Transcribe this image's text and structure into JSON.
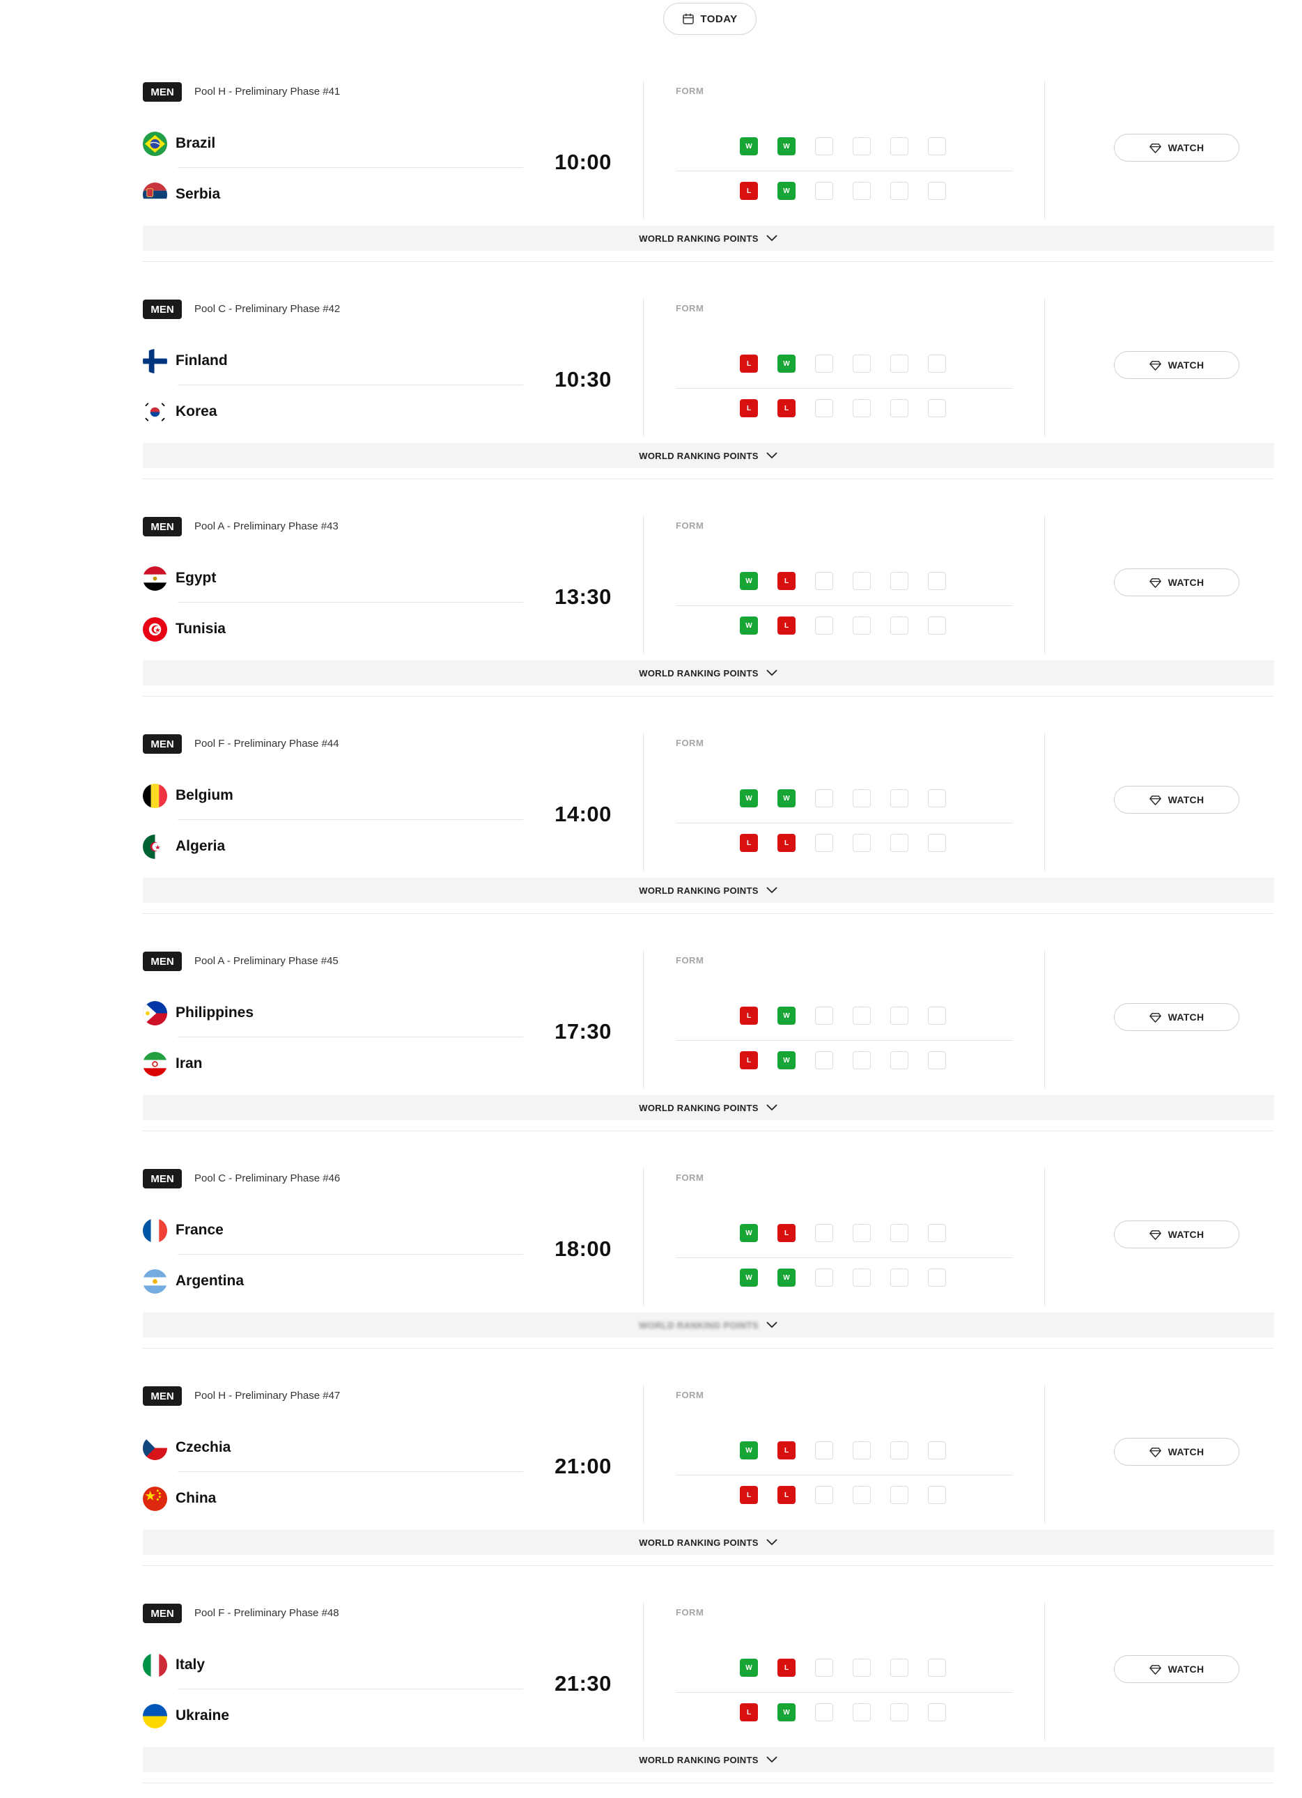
{
  "header": {
    "today_label": "TODAY"
  },
  "labels": {
    "form": "FORM",
    "watch": "WATCH",
    "wrp": "WORLD RANKING POINTS"
  },
  "colors": {
    "win": "#17a635",
    "loss": "#d91010",
    "tag_bg": "#1a1a1a",
    "bar_bg": "#f4f4f4"
  },
  "matches": [
    {
      "tag": "MEN",
      "pool": "Pool H - Preliminary Phase #41",
      "time": "10:00",
      "home": {
        "name": "Brazil",
        "flag": "brazil",
        "form": [
          "W",
          "W",
          "",
          "",
          "",
          ""
        ]
      },
      "away": {
        "name": "Serbia",
        "flag": "serbia",
        "form": [
          "L",
          "W",
          "",
          "",
          "",
          ""
        ]
      }
    },
    {
      "tag": "MEN",
      "pool": "Pool C - Preliminary Phase #42",
      "time": "10:30",
      "home": {
        "name": "Finland",
        "flag": "finland",
        "form": [
          "L",
          "W",
          "",
          "",
          "",
          ""
        ]
      },
      "away": {
        "name": "Korea",
        "flag": "korea",
        "form": [
          "L",
          "L",
          "",
          "",
          "",
          ""
        ]
      }
    },
    {
      "tag": "MEN",
      "pool": "Pool A - Preliminary Phase #43",
      "time": "13:30",
      "home": {
        "name": "Egypt",
        "flag": "egypt",
        "form": [
          "W",
          "L",
          "",
          "",
          "",
          ""
        ]
      },
      "away": {
        "name": "Tunisia",
        "flag": "tunisia",
        "form": [
          "W",
          "L",
          "",
          "",
          "",
          ""
        ]
      }
    },
    {
      "tag": "MEN",
      "pool": "Pool F - Preliminary Phase #44",
      "time": "14:00",
      "home": {
        "name": "Belgium",
        "flag": "belgium",
        "form": [
          "W",
          "W",
          "",
          "",
          "",
          ""
        ]
      },
      "away": {
        "name": "Algeria",
        "flag": "algeria",
        "form": [
          "L",
          "L",
          "",
          "",
          "",
          ""
        ]
      }
    },
    {
      "tag": "MEN",
      "pool": "Pool A - Preliminary Phase #45",
      "time": "17:30",
      "home": {
        "name": "Philippines",
        "flag": "philippines",
        "form": [
          "L",
          "W",
          "",
          "",
          "",
          ""
        ]
      },
      "away": {
        "name": "Iran",
        "flag": "iran",
        "form": [
          "L",
          "W",
          "",
          "",
          "",
          ""
        ]
      }
    },
    {
      "tag": "MEN",
      "pool": "Pool C - Preliminary Phase #46",
      "time": "18:00",
      "wrp_blurred": true,
      "home": {
        "name": "France",
        "flag": "france",
        "form": [
          "W",
          "L",
          "",
          "",
          "",
          ""
        ]
      },
      "away": {
        "name": "Argentina",
        "flag": "argentina",
        "form": [
          "W",
          "W",
          "",
          "",
          "",
          ""
        ]
      }
    },
    {
      "tag": "MEN",
      "pool": "Pool H - Preliminary Phase #47",
      "time": "21:00",
      "home": {
        "name": "Czechia",
        "flag": "czechia",
        "form": [
          "W",
          "L",
          "",
          "",
          "",
          ""
        ]
      },
      "away": {
        "name": "China",
        "flag": "china",
        "form": [
          "L",
          "L",
          "",
          "",
          "",
          ""
        ]
      }
    },
    {
      "tag": "MEN",
      "pool": "Pool F - Preliminary Phase #48",
      "time": "21:30",
      "home": {
        "name": "Italy",
        "flag": "italy",
        "form": [
          "W",
          "L",
          "",
          "",
          "",
          ""
        ]
      },
      "away": {
        "name": "Ukraine",
        "flag": "ukraine",
        "form": [
          "L",
          "W",
          "",
          "",
          "",
          ""
        ]
      }
    }
  ]
}
